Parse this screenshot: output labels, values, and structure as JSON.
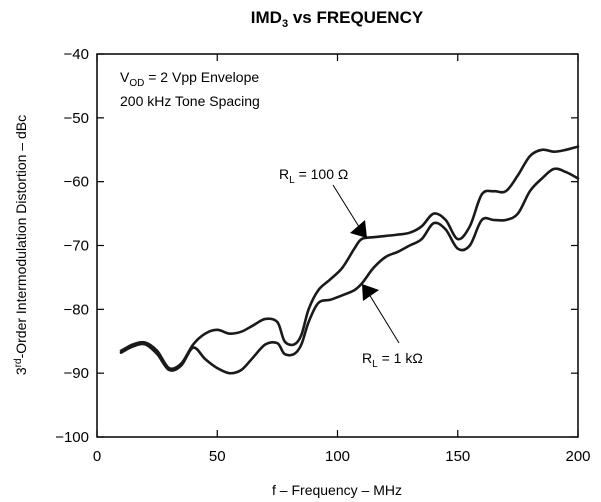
{
  "chart_data": {
    "type": "line",
    "title": "IMD",
    "title_sub": "3",
    "title_rest": " vs FREQUENCY",
    "xlabel": "f – Frequency – MHz",
    "ylabel_pre": "3",
    "ylabel_sup": "rd",
    "ylabel_rest": "-Order Intermodulation Distortion – dBc",
    "xlim": [
      0,
      200
    ],
    "ylim": [
      -100,
      -40
    ],
    "xticks": [
      0,
      50,
      100,
      150,
      200
    ],
    "yticks": [
      -40,
      -50,
      -60,
      -70,
      -80,
      -90,
      -100
    ],
    "xtick_labels": [
      "0",
      "50",
      "100",
      "150",
      "200"
    ],
    "ytick_labels": [
      "−40",
      "−50",
      "−60",
      "−70",
      "−80",
      "−90",
      "−100"
    ],
    "grid": false,
    "conditions": {
      "line1_pre": "V",
      "line1_sub": "OD",
      "line1_rest": " = 2 Vpp Envelope",
      "line2": "200 kHz Tone Spacing"
    },
    "annotations": [
      {
        "pre": "R",
        "sub": "L",
        "rest": " = 100 Ω"
      },
      {
        "pre": "R",
        "sub": "L",
        "rest": " = 1 kΩ"
      }
    ],
    "series": [
      {
        "x": [
          10,
          15,
          20,
          25,
          30,
          35,
          40,
          45,
          50,
          55,
          60,
          65,
          70,
          75,
          78,
          82,
          85,
          88,
          92,
          97,
          102,
          107,
          110,
          115,
          120,
          125,
          130,
          135,
          140,
          145,
          150,
          155,
          160,
          165,
          170,
          175,
          180,
          185,
          190,
          195,
          200
        ],
        "y": [
          -86.5,
          -85.5,
          -85.2,
          -86.5,
          -89.2,
          -88.5,
          -85.5,
          -83.8,
          -83.2,
          -83.8,
          -83.5,
          -82.5,
          -81.5,
          -82.0,
          -85.0,
          -85.5,
          -84.0,
          -80.0,
          -77.0,
          -75.3,
          -73.5,
          -70.5,
          -69.0,
          -68.7,
          -68.5,
          -68.3,
          -68.0,
          -67.0,
          -65.0,
          -66.0,
          -69.0,
          -67.0,
          -62.0,
          -61.5,
          -61.5,
          -59.0,
          -56.0,
          -55.0,
          -55.3,
          -55.0,
          -54.5
        ]
      },
      {
        "x": [
          10,
          15,
          20,
          25,
          30,
          35,
          40,
          45,
          50,
          55,
          60,
          65,
          70,
          75,
          78,
          82,
          85,
          88,
          92,
          97,
          102,
          107,
          110,
          115,
          120,
          125,
          130,
          135,
          140,
          145,
          150,
          155,
          160,
          165,
          170,
          175,
          180,
          185,
          190,
          195,
          200
        ],
        "y": [
          -86.8,
          -85.8,
          -85.5,
          -87.0,
          -89.5,
          -88.8,
          -86.0,
          -87.8,
          -89.2,
          -90.0,
          -89.5,
          -87.5,
          -85.5,
          -85.3,
          -87.0,
          -87.0,
          -85.5,
          -82.0,
          -79.0,
          -78.5,
          -77.8,
          -77.0,
          -76.0,
          -73.5,
          -71.8,
          -71.0,
          -70.0,
          -69.0,
          -66.5,
          -67.5,
          -70.5,
          -70.0,
          -66.0,
          -66.0,
          -66.0,
          -65.0,
          -61.5,
          -59.5,
          -58.0,
          -58.5,
          -59.5
        ]
      }
    ]
  }
}
